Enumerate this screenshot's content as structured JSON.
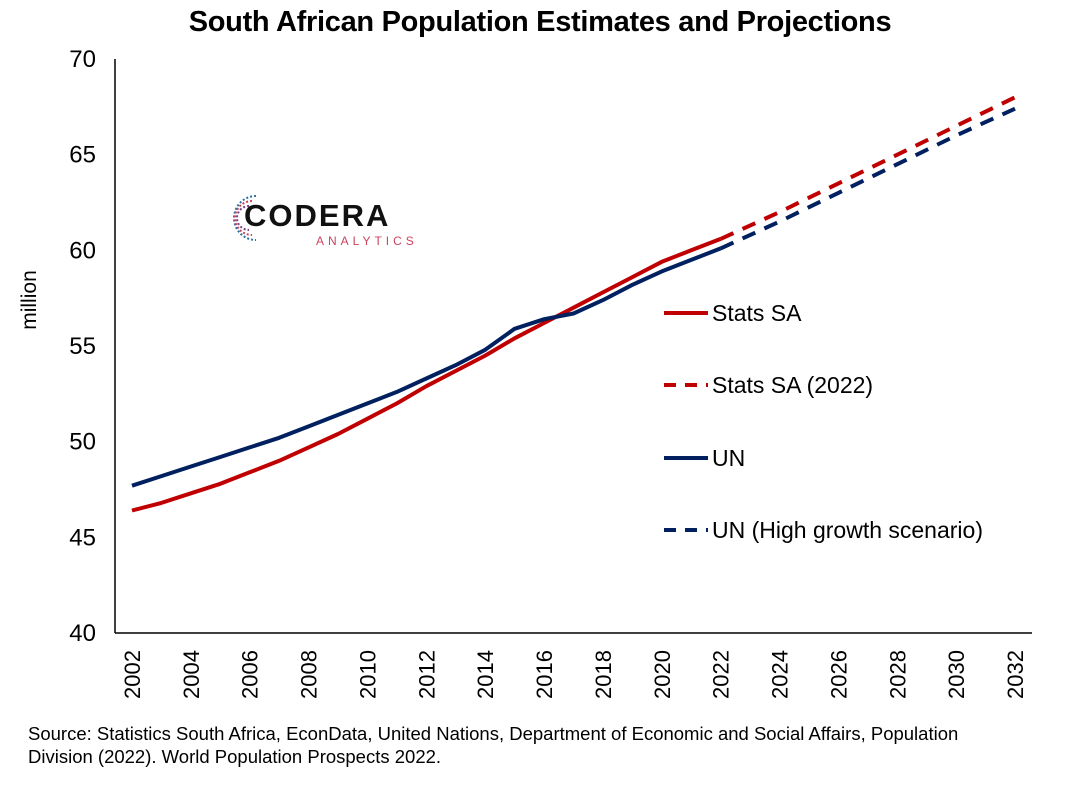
{
  "chart_data": {
    "type": "line",
    "title": "South African Population Estimates and Projections",
    "ylabel": "million",
    "xlabel": "",
    "xlim": [
      2002,
      2032
    ],
    "ylim": [
      40,
      70
    ],
    "x_ticks": [
      "2002",
      "2004",
      "2006",
      "2008",
      "2010",
      "2012",
      "2014",
      "2016",
      "2018",
      "2020",
      "2022",
      "2024",
      "2026",
      "2028",
      "2030",
      "2032"
    ],
    "y_ticks": [
      "40",
      "45",
      "50",
      "55",
      "60",
      "65",
      "70"
    ],
    "grid": false,
    "legend_position": "right",
    "series": [
      {
        "name": "Stats SA",
        "color": "#c00000",
        "style": "solid",
        "x": [
          2002,
          2003,
          2004,
          2005,
          2006,
          2007,
          2008,
          2009,
          2010,
          2011,
          2012,
          2013,
          2014,
          2015,
          2016,
          2017,
          2018,
          2019,
          2020,
          2021,
          2022
        ],
        "values": [
          46.4,
          46.8,
          47.3,
          47.8,
          48.4,
          49.0,
          49.7,
          50.4,
          51.2,
          52.0,
          52.9,
          53.7,
          54.5,
          55.4,
          56.2,
          57.0,
          57.8,
          58.6,
          59.4,
          60.0,
          60.6
        ]
      },
      {
        "name": "Stats SA (2022)",
        "color": "#c00000",
        "style": "dashed",
        "x": [
          2022,
          2024,
          2026,
          2028,
          2030,
          2032
        ],
        "values": [
          60.6,
          62.0,
          63.5,
          65.0,
          66.5,
          68.0
        ]
      },
      {
        "name": "UN",
        "color": "#002060",
        "style": "solid",
        "x": [
          2002,
          2003,
          2004,
          2005,
          2006,
          2007,
          2008,
          2009,
          2010,
          2011,
          2012,
          2013,
          2014,
          2015,
          2016,
          2017,
          2018,
          2019,
          2020,
          2021,
          2022
        ],
        "values": [
          47.7,
          48.2,
          48.7,
          49.2,
          49.7,
          50.2,
          50.8,
          51.4,
          52.0,
          52.6,
          53.3,
          54.0,
          54.8,
          55.9,
          56.4,
          56.7,
          57.4,
          58.2,
          58.9,
          59.5,
          60.1
        ]
      },
      {
        "name": "UN (High growth scenario)",
        "color": "#002060",
        "style": "dashed",
        "x": [
          2022,
          2024,
          2026,
          2028,
          2030,
          2032
        ],
        "values": [
          60.1,
          61.5,
          63.0,
          64.5,
          66.0,
          67.4
        ]
      }
    ]
  },
  "logo": {
    "word": "CODERA",
    "sub": "ANALYTICS"
  },
  "source": "Source: Statistics South Africa, EconData, United Nations, Department of Economic and Social Affairs, Population Division (2022). World Population Prospects 2022."
}
